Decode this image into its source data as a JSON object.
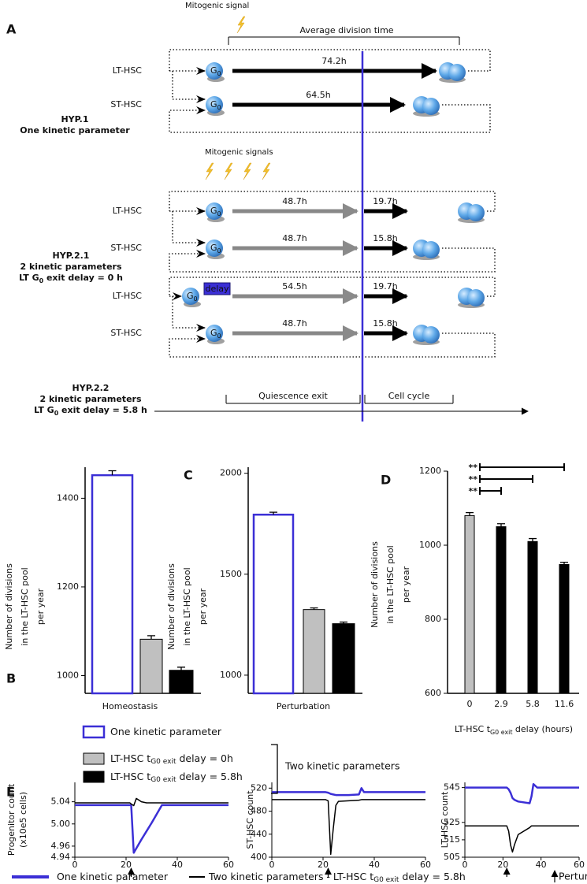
{
  "panel_a": {
    "label": "A",
    "cell": [
      "G",
      "0"
    ],
    "hyp1": {
      "signal": "Mitogenic signal",
      "span": "Average division time",
      "title": [
        "HYP.1",
        "One kinetic parameter"
      ],
      "rows": [
        {
          "name": "LT-HSC",
          "times": [
            "74.2h"
          ]
        },
        {
          "name": "ST-HSC",
          "times": [
            "64.5h"
          ]
        }
      ]
    },
    "hyp21": {
      "signal": "Mitogenic signals",
      "title": [
        "HYP.2.1",
        "2 kinetic parameters"
      ],
      "condition": [
        "LT G",
        "0",
        " exit delay = 0 h"
      ],
      "rows": [
        {
          "name": "LT-HSC",
          "times": [
            "48.7h",
            "19.7h"
          ]
        },
        {
          "name": "ST-HSC",
          "times": [
            "48.7h",
            "15.8h"
          ]
        }
      ]
    },
    "hyp22": {
      "title": [
        "HYP.2.2",
        "2 kinetic parameters"
      ],
      "condition": [
        "LT G",
        "0",
        " exit delay = 5.8 h"
      ],
      "delay": "delay",
      "rows": [
        {
          "name": "LT-HSC",
          "times": [
            "54.5h",
            "19.7h"
          ]
        },
        {
          "name": "ST-HSC",
          "times": [
            "48.7h",
            "15.8h"
          ]
        }
      ]
    },
    "phases": [
      "Quiescence exit",
      "Cell cycle"
    ]
  },
  "chart_data": [
    {
      "type": "bar",
      "panel": "B",
      "categories": [
        null,
        null,
        null
      ],
      "values": [
        1452,
        1082,
        1012
      ],
      "errors": [
        10,
        8,
        7
      ],
      "colors": [
        "#ffffff",
        "#c0c0c0",
        "#000000"
      ],
      "edge_colors": [
        "#3b2fd6",
        "#000000",
        "#000000"
      ],
      "x_label": "Homeostasis",
      "y_label": [
        "Number of divisions",
        "in the LT-HSC pool",
        "per year"
      ],
      "ylim": [
        960,
        1470
      ],
      "yticks": [
        1000,
        1200,
        1400
      ]
    },
    {
      "type": "bar",
      "panel": "C",
      "categories": [
        null,
        null,
        null
      ],
      "values": [
        1795,
        1325,
        1255
      ],
      "errors": [
        12,
        8,
        8
      ],
      "colors": [
        "#ffffff",
        "#c0c0c0",
        "#000000"
      ],
      "edge_colors": [
        "#3b2fd6",
        "#000000",
        "#000000"
      ],
      "x_label": "Perturbation",
      "y_label": [
        "Number of divisions",
        "in the LT-HSC pool",
        "per year"
      ],
      "ylim": [
        910,
        2030
      ],
      "yticks": [
        1000,
        1500,
        2000
      ]
    },
    {
      "type": "bar",
      "panel": "D",
      "categories": [
        "0",
        "2.9",
        "5.8",
        "11.6"
      ],
      "values": [
        1080,
        1050,
        1010,
        948
      ],
      "errors": [
        8,
        8,
        8,
        6
      ],
      "colors": [
        "#c0c0c0",
        "#000000",
        "#000000",
        "#000000"
      ],
      "edge_colors": [
        "#000000",
        "#000000",
        "#000000",
        "#000000"
      ],
      "x_label_parts": [
        "LT-HSC t",
        "G0 exit",
        " delay (hours)"
      ],
      "y_label": [
        "Number of divisions",
        "in the LT-HSC pool",
        "per year"
      ],
      "annotations": [
        "**",
        "**",
        "**"
      ],
      "ylim": [
        600,
        1200
      ],
      "yticks": [
        600,
        800,
        1000,
        1200
      ]
    },
    {
      "type": "line",
      "panel": "E",
      "y_label": [
        "Progenitor count",
        "(x10e5 cells)"
      ],
      "x": [
        0,
        21.5,
        22,
        23,
        24,
        26,
        28,
        30,
        34,
        40,
        60
      ],
      "series": [
        {
          "color": "#3b2fd6",
          "values": [
            5.034,
            5.034,
            5.034,
            4.948,
            4.956,
            4.972,
            4.987,
            5.002,
            5.034,
            5.034,
            5.034
          ]
        },
        {
          "color": "#000000",
          "values": [
            5.038,
            5.038,
            5.036,
            5.033,
            5.046,
            5.04,
            5.038,
            5.038,
            5.038,
            5.038,
            5.038
          ]
        }
      ],
      "xlim": [
        0,
        60
      ],
      "xticks": [
        0,
        20,
        40,
        60
      ],
      "ylim": [
        4.94,
        5.075
      ],
      "yticks": [
        4.94,
        4.96,
        {
          "value": 5,
          "label": "5.00"
        },
        5.04
      ],
      "perturbation_x": 22
    },
    {
      "type": "line",
      "y_label": [
        "ST-HSC count"
      ],
      "x": [
        0,
        21,
        22,
        23,
        24,
        25,
        26,
        30,
        34,
        35,
        36,
        40,
        60
      ],
      "series": [
        {
          "color": "#3b2fd6",
          "values": [
            513,
            513,
            512,
            510,
            509,
            508,
            508,
            508,
            509,
            520,
            513,
            513,
            513
          ]
        },
        {
          "color": "#000000",
          "values": [
            500,
            500,
            498,
            405,
            450,
            490,
            497,
            498,
            499,
            500,
            500,
            500,
            500
          ]
        }
      ],
      "xlim": [
        0,
        60
      ],
      "xticks": [
        0,
        20,
        40,
        60
      ],
      "ylim": [
        400,
        530
      ],
      "yticks": [
        400,
        440,
        480,
        520
      ],
      "perturbation_x": 22
    },
    {
      "type": "line",
      "y_label": [
        "LT-HSC count"
      ],
      "x": [
        0,
        21,
        22,
        23,
        24,
        25,
        26,
        28,
        34,
        35,
        36,
        38,
        40,
        60
      ],
      "series": [
        {
          "color": "#3b2fd6",
          "values": [
            545,
            545,
            545,
            544,
            542,
            539,
            538,
            537,
            536,
            540,
            547,
            545,
            545,
            545
          ]
        },
        {
          "color": "#000000",
          "values": [
            523,
            523,
            523,
            520,
            512,
            508,
            512,
            518,
            522,
            523,
            523,
            523,
            523,
            523
          ]
        }
      ],
      "xlim": [
        0,
        60
      ],
      "xticks": [
        0,
        20,
        40,
        60
      ],
      "ylim": [
        505,
        548
      ],
      "yticks": [
        505,
        515,
        525,
        545
      ],
      "perturbation_x": 22
    }
  ],
  "legend_bc": {
    "items": [
      [
        "One kinetic parameter"
      ],
      [
        "LT-HSC t",
        "G0 exit",
        " delay = 0h"
      ],
      [
        "LT-HSC t",
        "G0 exit",
        " delay = 5.8h"
      ]
    ],
    "fills": [
      "#ffffff",
      "#c0c0c0",
      "#000000"
    ],
    "edges": [
      "#3b2fd6",
      "#000000",
      "#000000"
    ],
    "group": "Two kinetic parameters"
  },
  "legend_e": {
    "items": [
      [
        "One kinetic parameter"
      ],
      [
        "Two kinetic parameters - LT-HSC t",
        "G0 exit",
        " delay = 5.8h"
      ]
    ],
    "colors": [
      "#3b2fd6",
      "#000000"
    ],
    "perturbation": "Perturbation"
  }
}
